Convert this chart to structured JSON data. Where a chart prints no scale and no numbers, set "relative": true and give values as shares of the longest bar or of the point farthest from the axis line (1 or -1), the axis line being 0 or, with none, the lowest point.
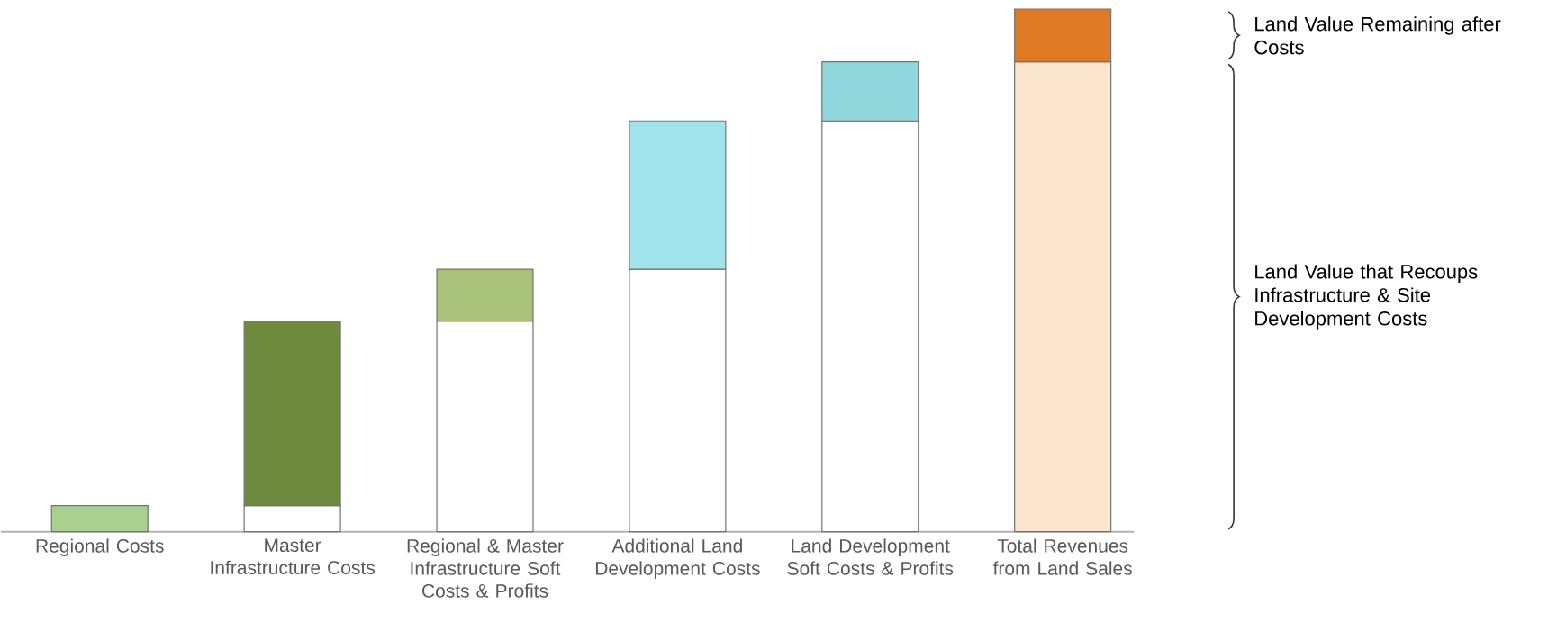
{
  "chart_data": {
    "type": "bar",
    "relative": true,
    "stacked": true,
    "categories": [
      "Regional Costs",
      "Master Infrastructure Costs",
      "Regional & Master Infrastructure Soft Costs & Profits",
      "Additional Land Development Costs",
      "Land Development Soft Costs & Profits",
      "Total Revenues from Land Sales"
    ],
    "series": [
      {
        "colors": [
          "#ffffff",
          "#ffffff",
          "#ffffff",
          "#ffffff",
          "#ffffff",
          "#fbe5cd"
        ],
        "values": [
          null,
          0.05,
          0.403,
          0.502,
          0.786,
          0.899
        ]
      },
      {
        "colors": [
          "#a9d08e",
          "#6e8b3d",
          "#a9c27a",
          "#a0e3ea",
          "#8fd6dd",
          "#e07b25"
        ],
        "values": [
          0.05,
          0.353,
          0.099,
          0.284,
          0.113,
          0.101
        ]
      }
    ],
    "annotations": [
      "Land Value Remaining after Costs",
      "Land Value that Recoups Infrastructure & Site Development Costs"
    ]
  }
}
